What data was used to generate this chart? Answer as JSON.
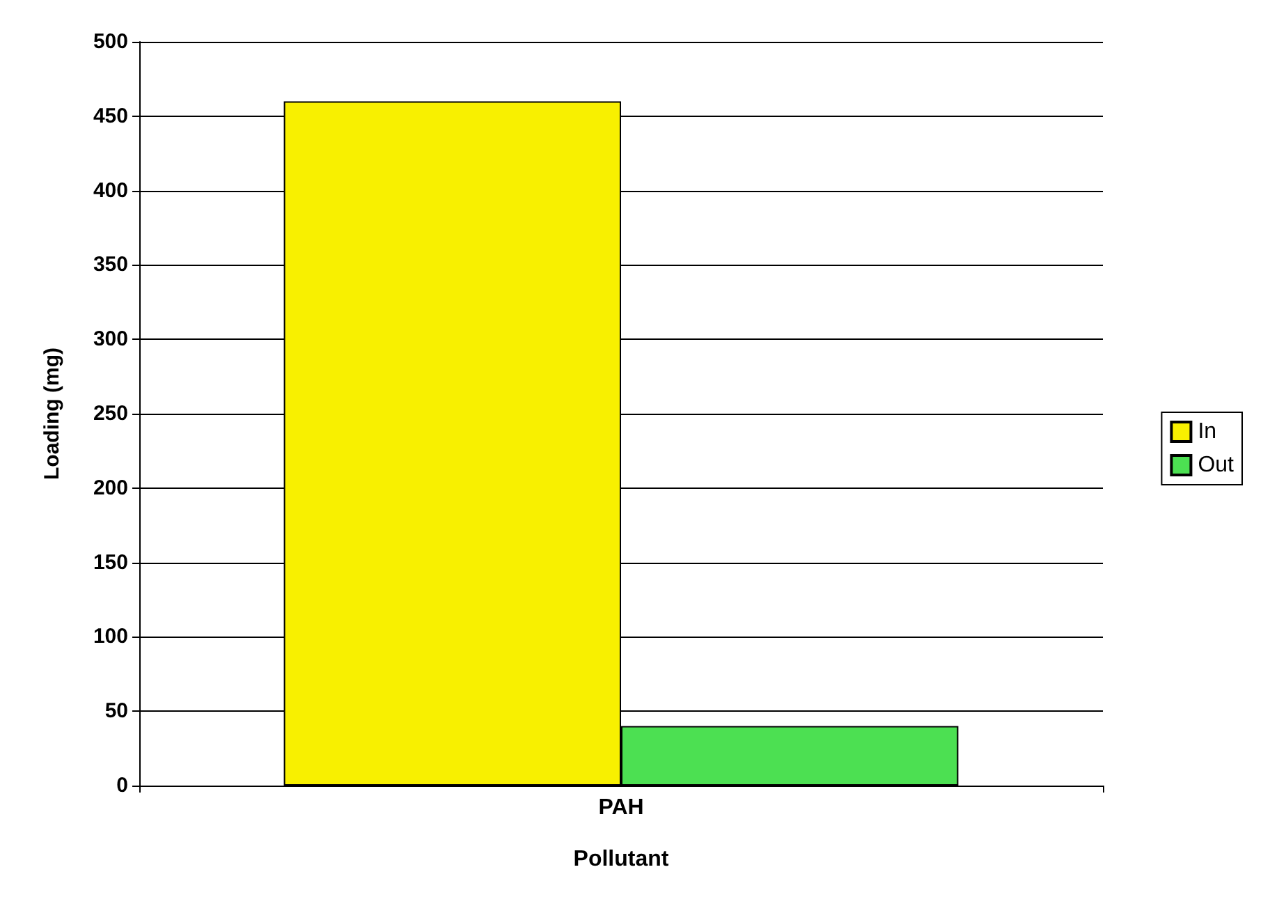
{
  "chart_data": {
    "type": "bar",
    "xlabel": "Pollutant",
    "ylabel": "Loading (mg)",
    "categories": [
      "PAH"
    ],
    "series": [
      {
        "name": "In",
        "color": "#f8f000",
        "values": [
          460
        ]
      },
      {
        "name": "Out",
        "color": "#4ce052",
        "values": [
          40
        ]
      }
    ],
    "ylim": [
      0,
      500
    ],
    "yticks": [
      0,
      50,
      100,
      150,
      200,
      250,
      300,
      350,
      400,
      450,
      500
    ],
    "grid": "y",
    "legend": "right"
  }
}
